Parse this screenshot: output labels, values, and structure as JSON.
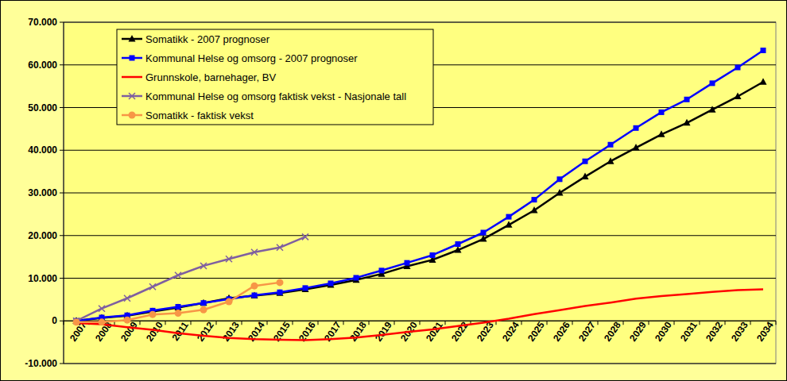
{
  "chart_data": {
    "type": "line",
    "categories": [
      "2007",
      "2008",
      "2009",
      "2010",
      "2011",
      "2012",
      "2013",
      "2014",
      "2015",
      "2016",
      "2017",
      "2018",
      "2019",
      "2020",
      "2021",
      "2022",
      "2023",
      "2024",
      "2025",
      "2026",
      "2027",
      "2028",
      "2029",
      "2030",
      "2031",
      "2032",
      "2033",
      "2034"
    ],
    "series": [
      {
        "name": "Somatikk - 2007 prognoser",
        "color": "#000000",
        "marker": "triangle",
        "values": [
          0,
          700,
          1200,
          2200,
          3100,
          4200,
          5300,
          5900,
          6500,
          7400,
          8400,
          9600,
          11000,
          12800,
          14300,
          16600,
          19200,
          22500,
          25900,
          30000,
          33800,
          37400,
          40600,
          43700,
          46400,
          49500,
          52600,
          56000
        ]
      },
      {
        "name": "Kommunal Helse og omsorg - 2007 prognoser",
        "color": "#0000ff",
        "marker": "square",
        "values": [
          0,
          800,
          1300,
          2400,
          3300,
          4200,
          5100,
          6000,
          6700,
          7700,
          8800,
          10100,
          11800,
          13600,
          15400,
          18000,
          20700,
          24400,
          28400,
          33200,
          37400,
          41300,
          45200,
          48900,
          51900,
          55700,
          59400,
          63400
        ]
      },
      {
        "name": "Grunnskole, barnehager, BV",
        "color": "#ff0000",
        "marker": "none",
        "values": [
          -500,
          -800,
          -1500,
          -2100,
          -2900,
          -3500,
          -4000,
          -4300,
          -4400,
          -4500,
          -4300,
          -3900,
          -3300,
          -2600,
          -2000,
          -1200,
          -400,
          500,
          1600,
          2500,
          3500,
          4300,
          5200,
          5800,
          6300,
          6800,
          7200,
          7400
        ]
      },
      {
        "name": "Kommunal Helse og omsorg faktisk vekst - Nasjonale tall",
        "color": "#7f5fa0",
        "marker": "x",
        "values": [
          0,
          2900,
          5300,
          8000,
          10700,
          12900,
          14500,
          16100,
          17200,
          19700,
          null,
          null,
          null,
          null,
          null,
          null,
          null,
          null,
          null,
          null,
          null,
          null,
          null,
          null,
          null,
          null,
          null,
          null
        ]
      },
      {
        "name": "Somatikk - faktisk vekst",
        "color": "#f79646",
        "marker": "circle",
        "values": [
          -300,
          -300,
          200,
          1500,
          1800,
          2600,
          4500,
          8200,
          9000,
          null,
          null,
          null,
          null,
          null,
          null,
          null,
          null,
          null,
          null,
          null,
          null,
          null,
          null,
          null,
          null,
          null,
          null,
          null
        ]
      }
    ],
    "ylim": [
      -10000,
      70000
    ],
    "yticks": [
      {
        "value": -10000,
        "label": "-10.000"
      },
      0,
      {
        "value": 10000,
        "label": "10.000"
      },
      {
        "value": 20000,
        "label": "20.000"
      },
      {
        "value": 30000,
        "label": "30.000"
      },
      {
        "value": 40000,
        "label": "40.000"
      },
      {
        "value": 50000,
        "label": "50.000"
      },
      {
        "value": 60000,
        "label": "60.000"
      },
      {
        "value": 70000,
        "label": "70.000"
      }
    ],
    "grid": true,
    "legend": "top-left"
  }
}
